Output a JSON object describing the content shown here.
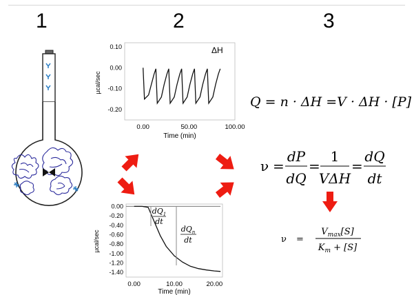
{
  "steps": [
    "1",
    "2",
    "3"
  ],
  "chart_top": {
    "type": "line",
    "title": "ΔH",
    "xlabel": "Time (min)",
    "ylabel": "µcal/sec",
    "xticks": [
      "0.00",
      "50.00",
      "100.00"
    ],
    "yticks": [
      "0.10",
      "0.00",
      "-0.10",
      "-0.20"
    ],
    "xlim": [
      -20,
      100
    ],
    "ylim": [
      -0.25,
      0.12
    ],
    "series": [
      {
        "x": [
          0,
          1.5,
          6,
          9,
          12,
          14,
          15.5,
          20,
          23,
          26,
          28,
          29.5,
          34,
          37,
          40,
          42,
          43.5,
          48,
          51,
          54,
          56,
          57.5,
          62,
          65,
          68,
          70,
          71.5,
          76,
          79,
          82,
          84
        ],
        "y": [
          0.0,
          -0.15,
          -0.13,
          -0.08,
          -0.03,
          -0.005,
          -0.17,
          -0.14,
          -0.08,
          -0.03,
          -0.005,
          -0.17,
          -0.14,
          -0.08,
          -0.03,
          -0.005,
          -0.17,
          -0.14,
          -0.08,
          -0.03,
          -0.005,
          -0.17,
          -0.14,
          -0.08,
          -0.03,
          -0.005,
          -0.17,
          -0.14,
          -0.08,
          -0.03,
          -0.005
        ]
      }
    ]
  },
  "chart_bottom": {
    "type": "line",
    "xlabel": "Time (min)",
    "ylabel": "µcal/sec",
    "xticks": [
      "0.00",
      "10.00",
      "20.00"
    ],
    "yticks": [
      "0.00",
      "-0.20",
      "-0.40",
      "-0.60",
      "-0.80",
      "-1.00",
      "-1.20",
      "-1.40"
    ],
    "xlim": [
      -2,
      22
    ],
    "ylim": [
      -1.5,
      0.05
    ],
    "annotations": [
      {
        "num": "dQ",
        "sub": "1",
        "den": "dt"
      },
      {
        "num": "dQ",
        "sub": "n",
        "den": "dt"
      }
    ],
    "series": [
      {
        "x": [
          -2,
          21.5
        ],
        "y": [
          0,
          0
        ]
      },
      {
        "x": [
          0,
          2,
          3.5,
          5,
          6.5,
          8,
          10,
          12,
          14,
          16,
          18,
          20,
          21.5
        ],
        "y": [
          0,
          0,
          -0.02,
          -0.32,
          -0.62,
          -0.85,
          -1.05,
          -1.18,
          -1.27,
          -1.32,
          -1.35,
          -1.37,
          -1.38
        ]
      }
    ]
  },
  "equations": {
    "heat": "Q = n · ΔH =V · ΔH · [P]",
    "rate_nu": "ν",
    "rate_eq": "=",
    "rate_frac1": {
      "num": "dP",
      "den": "dQ"
    },
    "rate_frac2": {
      "num": "1",
      "den": "VΔH"
    },
    "rate_frac3": {
      "num": "dQ",
      "den": "dt"
    },
    "mm_nu": "ν",
    "mm_eq": "=",
    "mm_num": "V_max[S]",
    "mm_den": "K_m + [S]"
  },
  "colors": {
    "arrow": "#ee1c12",
    "protein": "#2a2a9c",
    "ligand": "#2e7fc4"
  }
}
